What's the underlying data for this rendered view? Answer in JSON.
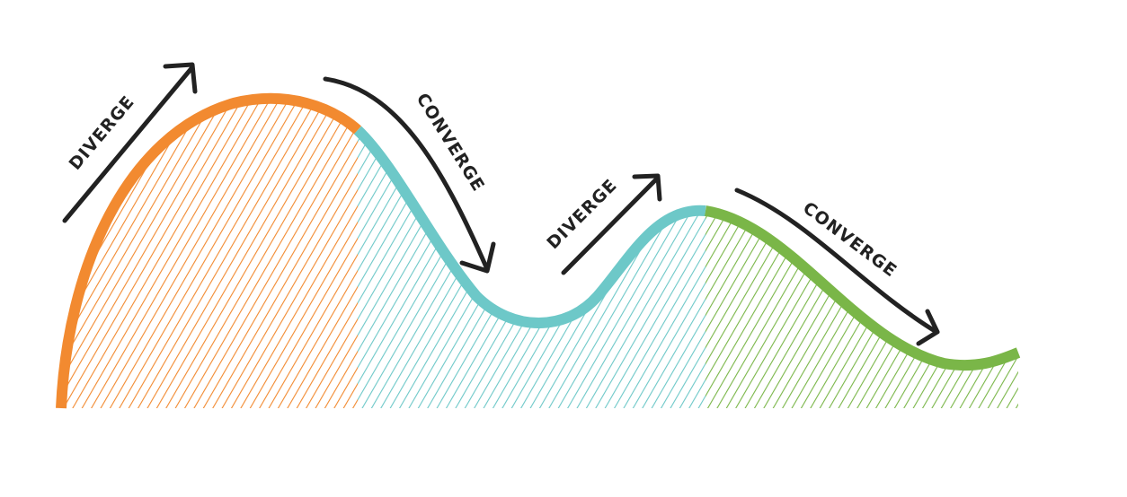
{
  "colors": {
    "diverge_1": "#f28a30",
    "converge_1": "#6dc8c8",
    "converge_2": "#7ab648",
    "ink": "#222222",
    "background": "#ffffff"
  },
  "labels": {
    "diverge_1": "DIVERGE",
    "converge_1": "CONVERGE",
    "diverge_2": "DIVERGE",
    "converge_2": "CONVERGE"
  },
  "phases": [
    {
      "name": "diverge-phase-1",
      "color": "diverge_1"
    },
    {
      "name": "converge-phase-1",
      "color": "converge_1"
    },
    {
      "name": "diverge-phase-2",
      "color": "converge_1"
    },
    {
      "name": "converge-phase-2",
      "color": "converge_2"
    }
  ]
}
